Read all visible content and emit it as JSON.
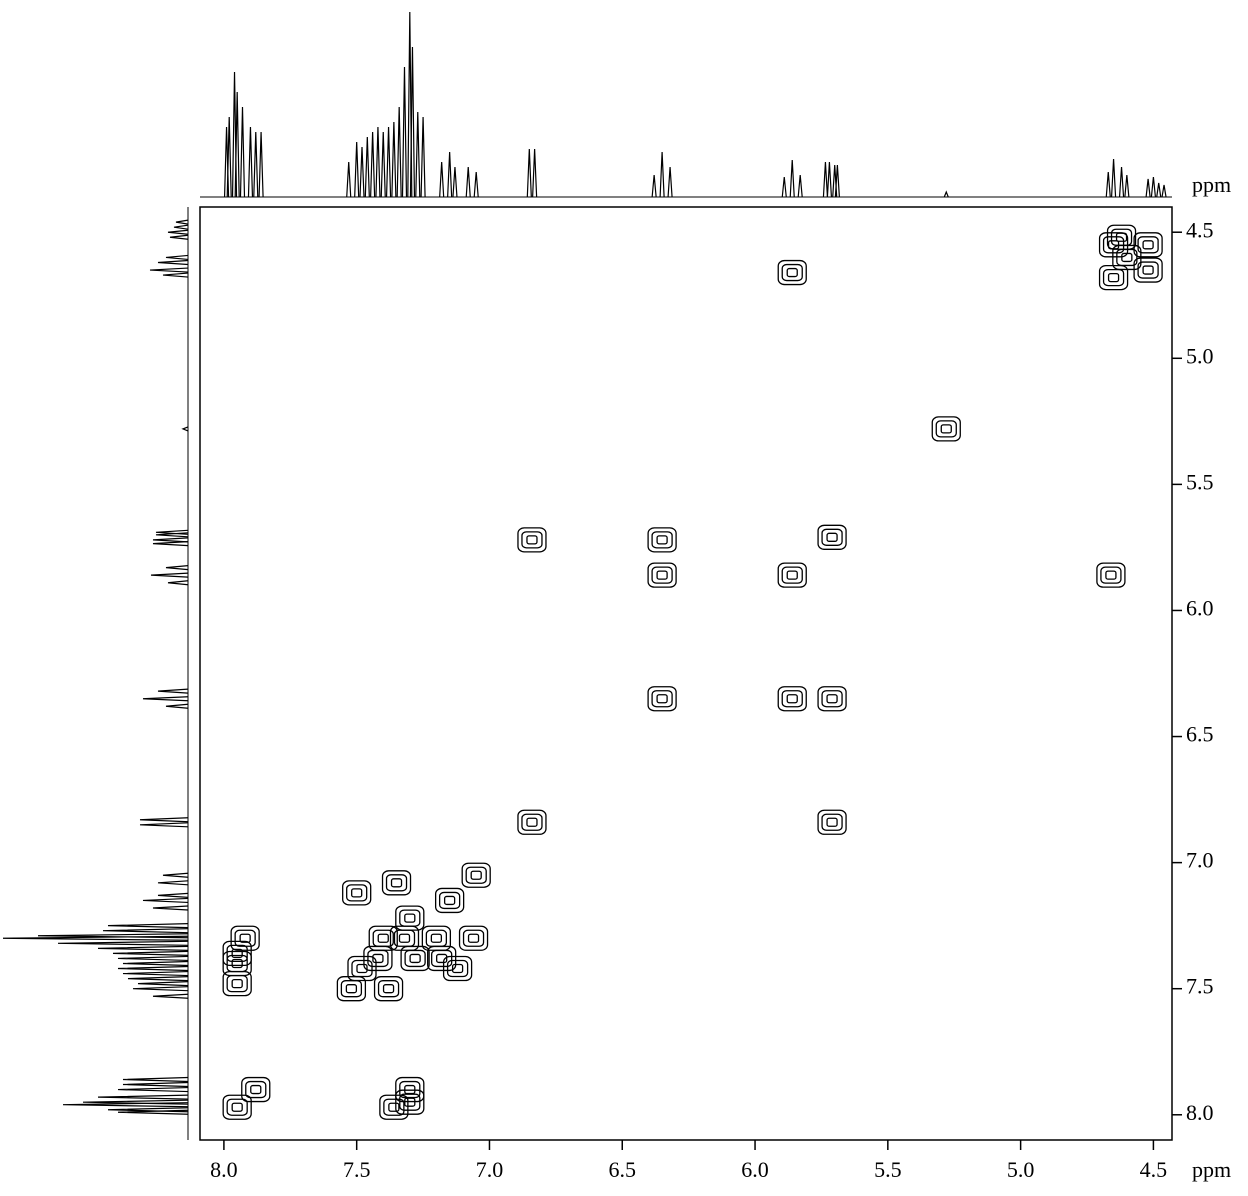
{
  "chart_data": {
    "type": "nmr_2d",
    "x_label": "ppm",
    "y_label": "ppm",
    "xlim": [
      8.09,
      4.43
    ],
    "ylim": [
      4.4,
      8.1
    ],
    "xticks": [
      {
        "value": 8,
        "label": "8.0"
      },
      7.5,
      {
        "value": 7,
        "label": "7.0"
      },
      6.5,
      {
        "value": 6,
        "label": "6.0"
      },
      5.5,
      {
        "value": 5,
        "label": "5.0"
      },
      4.5
    ],
    "yticks": [
      4.5,
      {
        "value": 5,
        "label": "5.0"
      },
      5.5,
      {
        "value": 6,
        "label": "6.0"
      },
      6.5,
      {
        "value": 7,
        "label": "7.0"
      },
      7.5,
      {
        "value": 8,
        "label": "8.0"
      }
    ],
    "color": "#000000",
    "projection": {
      "x": [
        7.99,
        7.98,
        7.96,
        7.95,
        7.93,
        7.9,
        7.88,
        7.86,
        7.53,
        7.5,
        7.48,
        7.46,
        7.44,
        7.42,
        7.4,
        7.38,
        7.36,
        7.34,
        7.32,
        7.3,
        7.29,
        7.27,
        7.25,
        7.18,
        7.15,
        7.13,
        7.08,
        7.05,
        6.85,
        6.83,
        6.38,
        6.35,
        6.32,
        5.89,
        5.86,
        5.83,
        5.735,
        5.72,
        5.7,
        5.69,
        5.28,
        4.67,
        4.65,
        4.62,
        4.6,
        4.52,
        4.5,
        4.48,
        4.46
      ],
      "values": [
        70,
        80,
        125,
        105,
        90,
        70,
        65,
        65,
        35,
        55,
        50,
        60,
        65,
        70,
        65,
        70,
        75,
        90,
        130,
        185,
        150,
        85,
        80,
        35,
        45,
        30,
        30,
        25,
        48,
        48,
        22,
        45,
        30,
        20,
        37,
        22,
        35,
        35,
        32,
        32,
        5,
        25,
        38,
        30,
        22,
        18,
        20,
        14,
        12
      ]
    },
    "cross_peaks": {
      "x": [
        7.95,
        7.88,
        7.92,
        7.95,
        7.95,
        7.95,
        7.36,
        7.3,
        7.3,
        7.52,
        7.48,
        7.42,
        7.38,
        7.32,
        7.28,
        7.3,
        7.35,
        7.5,
        7.2,
        7.18,
        7.12,
        7.06,
        7.15,
        7.05,
        7.4,
        6.84,
        5.71,
        6.84,
        6.35,
        6.35,
        6.35,
        5.86,
        5.71,
        5.86,
        5.71,
        4.66,
        5.86,
        5.28,
        4.65,
        4.6,
        4.52,
        4.52,
        4.65,
        4.62
      ],
      "y": [
        7.97,
        7.9,
        7.3,
        7.36,
        7.4,
        7.48,
        7.97,
        7.95,
        7.9,
        7.5,
        7.42,
        7.38,
        7.5,
        7.3,
        7.38,
        7.22,
        7.08,
        7.12,
        7.3,
        7.38,
        7.42,
        7.3,
        7.15,
        7.05,
        7.3,
        6.84,
        6.84,
        5.72,
        5.72,
        5.86,
        6.35,
        6.35,
        6.35,
        5.86,
        5.71,
        5.86,
        4.66,
        5.28,
        4.55,
        4.6,
        4.55,
        4.65,
        4.68,
        4.52
      ]
    }
  }
}
